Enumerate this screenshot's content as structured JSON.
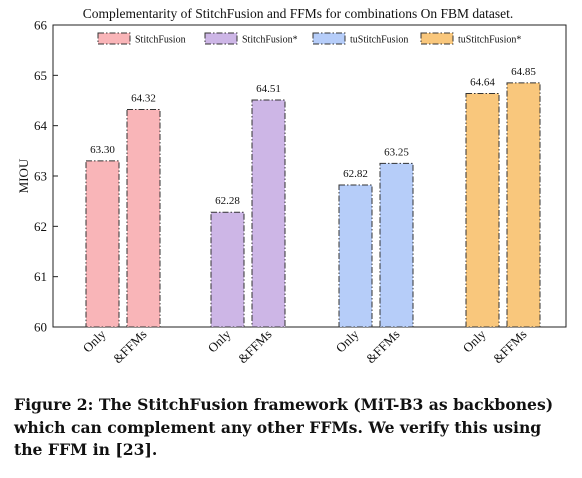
{
  "chart_data": {
    "type": "bar",
    "title": "Complementarity of StitchFusion and FFMs for combinations On FBM dataset.",
    "xlabel": "",
    "ylabel": "MIOU",
    "ylim": [
      60,
      66
    ],
    "yticks": [
      60,
      61,
      62,
      63,
      64,
      65,
      66
    ],
    "grid": false,
    "legend_position": "top",
    "categories": [
      "Only",
      "&FFMs"
    ],
    "series": [
      {
        "name": "StitchFusion",
        "values": [
          63.3,
          64.32
        ],
        "labels": [
          "63.30",
          "64.32"
        ],
        "color": "#f9b5b8"
      },
      {
        "name": "StitchFusion*",
        "values": [
          62.28,
          64.51
        ],
        "labels": [
          "62.28",
          "64.51"
        ],
        "color": "#cdb6e6"
      },
      {
        "name": "tuStitchFusion",
        "values": [
          62.82,
          63.25
        ],
        "labels": [
          "62.82",
          "63.25"
        ],
        "color": "#b6cdf9"
      },
      {
        "name": "tuStitchFusion*",
        "values": [
          64.64,
          64.85
        ],
        "labels": [
          "64.64",
          "64.85"
        ],
        "color": "#f9c77c"
      }
    ]
  },
  "caption": "Figure 2: The StitchFusion framework (MiT-B3 as backbones) which can complement any other FFMs. We verify this using the FFM in [23]."
}
